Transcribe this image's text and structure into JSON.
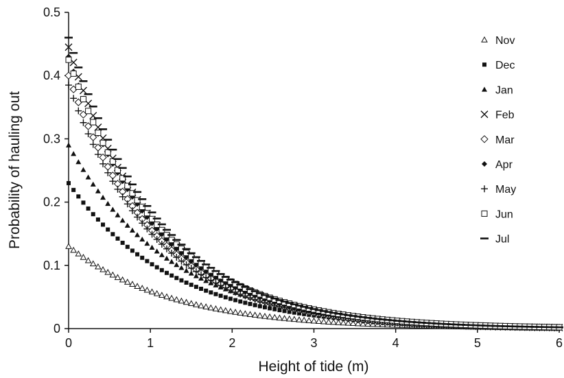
{
  "chart_data": {
    "type": "scatter",
    "title": "",
    "xlabel": "Height of tide (m)",
    "ylabel": "Probability of hauling out",
    "xlim": [
      0,
      6
    ],
    "ylim": [
      0,
      0.5
    ],
    "x_ticks": [
      "0",
      "1",
      "2",
      "3",
      "4",
      "5",
      "6"
    ],
    "y_ticks": [
      "0",
      "0.1",
      "0.2",
      "0.3",
      "0.4",
      "0.5"
    ],
    "grid": false,
    "legend_position": "right",
    "x_step": 0.06,
    "series": [
      {
        "name": "Nov",
        "marker": "triangle-open",
        "start": 0.13,
        "decay": 0.79
      },
      {
        "name": "Dec",
        "marker": "square-filled",
        "start": 0.23,
        "decay": 0.8
      },
      {
        "name": "Jan",
        "marker": "triangle-filled",
        "start": 0.29,
        "decay": 0.8
      },
      {
        "name": "Feb",
        "marker": "x",
        "start": 0.445,
        "decay": 0.93
      },
      {
        "name": "Mar",
        "marker": "diamond-open",
        "start": 0.4,
        "decay": 0.93
      },
      {
        "name": "Apr",
        "marker": "diamond-filled",
        "start": 0.43,
        "decay": 0.93
      },
      {
        "name": "May",
        "marker": "plus",
        "start": 0.385,
        "decay": 0.93
      },
      {
        "name": "Jun",
        "marker": "square-open",
        "start": 0.425,
        "decay": 0.88
      },
      {
        "name": "Jul",
        "marker": "dash",
        "start": 0.46,
        "decay": 0.9
      }
    ]
  }
}
